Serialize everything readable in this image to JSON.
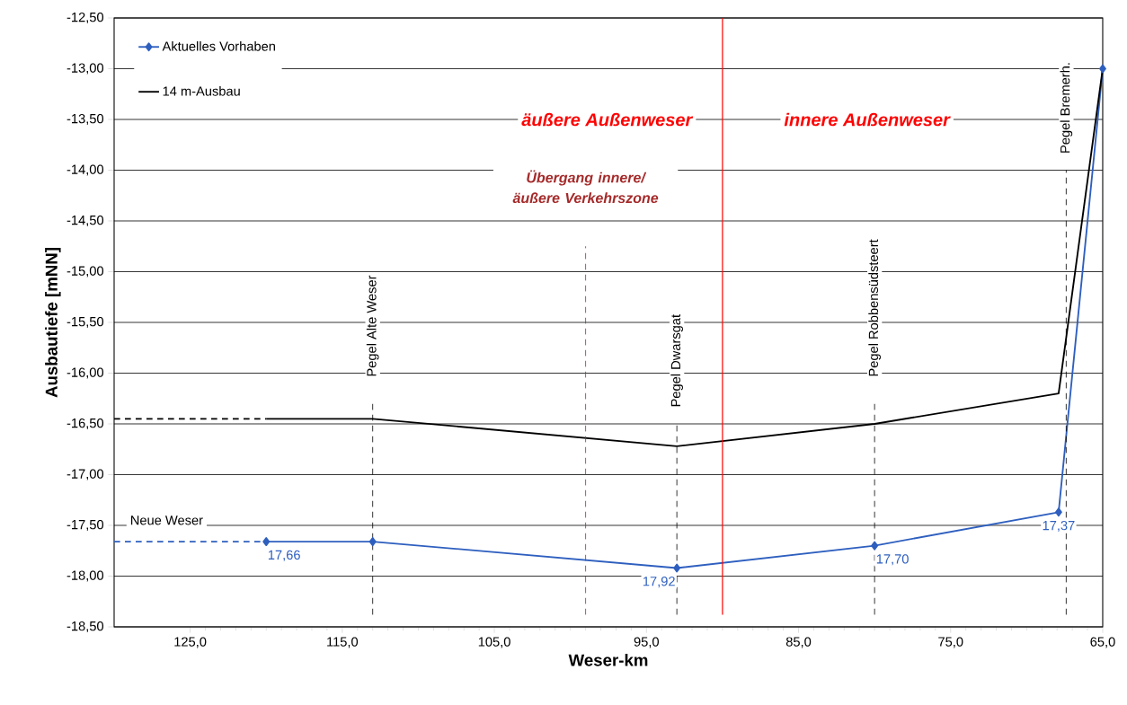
{
  "chart_data": {
    "type": "line",
    "xlabel": "Weser-km",
    "ylabel": "Ausbautiefe [mNN]",
    "xlim": [
      130,
      65
    ],
    "ylim": [
      -18.5,
      -12.5
    ],
    "xticks": [
      {
        "value": 125,
        "label": "125,0"
      },
      {
        "value": 115,
        "label": "115,0"
      },
      {
        "value": 105,
        "label": "105,0"
      },
      {
        "value": 95,
        "label": "95,0"
      },
      {
        "value": 85,
        "label": "85,0"
      },
      {
        "value": 75,
        "label": "75,0"
      },
      {
        "value": 65,
        "label": "65,0"
      }
    ],
    "yticks": [
      {
        "value": -18.5,
        "label": "-18,50"
      },
      {
        "value": -18,
        "label": "-18,00"
      },
      {
        "value": -17.5,
        "label": "-17,50"
      },
      {
        "value": -17,
        "label": "-17,00"
      },
      {
        "value": -16.5,
        "label": "-16,50"
      },
      {
        "value": -16,
        "label": "-16,00"
      },
      {
        "value": -15.5,
        "label": "-15,50"
      },
      {
        "value": -15,
        "label": "-15,00"
      },
      {
        "value": -14.5,
        "label": "-14,50"
      },
      {
        "value": -14,
        "label": "-14,00"
      },
      {
        "value": -13.5,
        "label": "-13,50"
      },
      {
        "value": -13,
        "label": "-13,00"
      },
      {
        "value": -12.5,
        "label": "-12,50"
      }
    ],
    "grid": "y",
    "legend": "top left",
    "series": [
      {
        "name": "Aktuelles Vorhaben",
        "color": "#2e5fbf",
        "marker": "diamond",
        "x": [
          120,
          113,
          93,
          80,
          67.9,
          65
        ],
        "values": [
          -17.66,
          -17.66,
          -17.92,
          -17.7,
          -17.37,
          -13.0
        ]
      },
      {
        "name": "14 m-Ausbau",
        "color": "#000000",
        "x": [
          120,
          113,
          93,
          80,
          67.9,
          65
        ],
        "values": [
          -16.45,
          -16.45,
          -16.72,
          -16.5,
          -16.2,
          -13.0
        ]
      },
      {
        "color": "#000000",
        "line_style": "dashed",
        "x": [
          130,
          120
        ],
        "values": [
          -16.45,
          -16.45
        ]
      },
      {
        "color": "#2e5fbf",
        "line_style": "dashed",
        "x": [
          130,
          120
        ],
        "values": [
          -17.66,
          -17.66
        ]
      }
    ],
    "ref_lines": [
      {
        "axis": "x",
        "value": 113,
        "label": "Pegel Alte Weser",
        "color": "#000000",
        "line_style": "dashed"
      },
      {
        "axis": "x",
        "value": 99,
        "label": "Übergang innere/ äußere Verkehrszone",
        "color": "#a52a2a",
        "line_style": "dashed"
      },
      {
        "axis": "x",
        "value": 93,
        "label": "Pegel Dwarsgat",
        "color": "#000000",
        "line_style": "dashed"
      },
      {
        "axis": "x",
        "value": 90,
        "color": "#ff0000",
        "line_style": "solid"
      },
      {
        "axis": "x",
        "value": 80,
        "label": "Pegel Robbensüdsteert",
        "color": "#000000",
        "line_style": "dashed"
      },
      {
        "axis": "x",
        "value": 67.4,
        "label": "Pegel Bremerh.",
        "color": "#000000",
        "line_style": "dashed"
      }
    ],
    "annotations": [
      "äußere Außenweser",
      "innere Außenweser",
      "Neue Weser",
      {
        "text": "17,66",
        "x": 120,
        "y": -17.66
      },
      {
        "text": "17,92",
        "x": 93,
        "y": -17.92
      },
      {
        "text": "17,70",
        "x": 80,
        "y": -17.7
      },
      {
        "text": "17,37",
        "x": 67.9,
        "y": -17.37
      }
    ]
  }
}
